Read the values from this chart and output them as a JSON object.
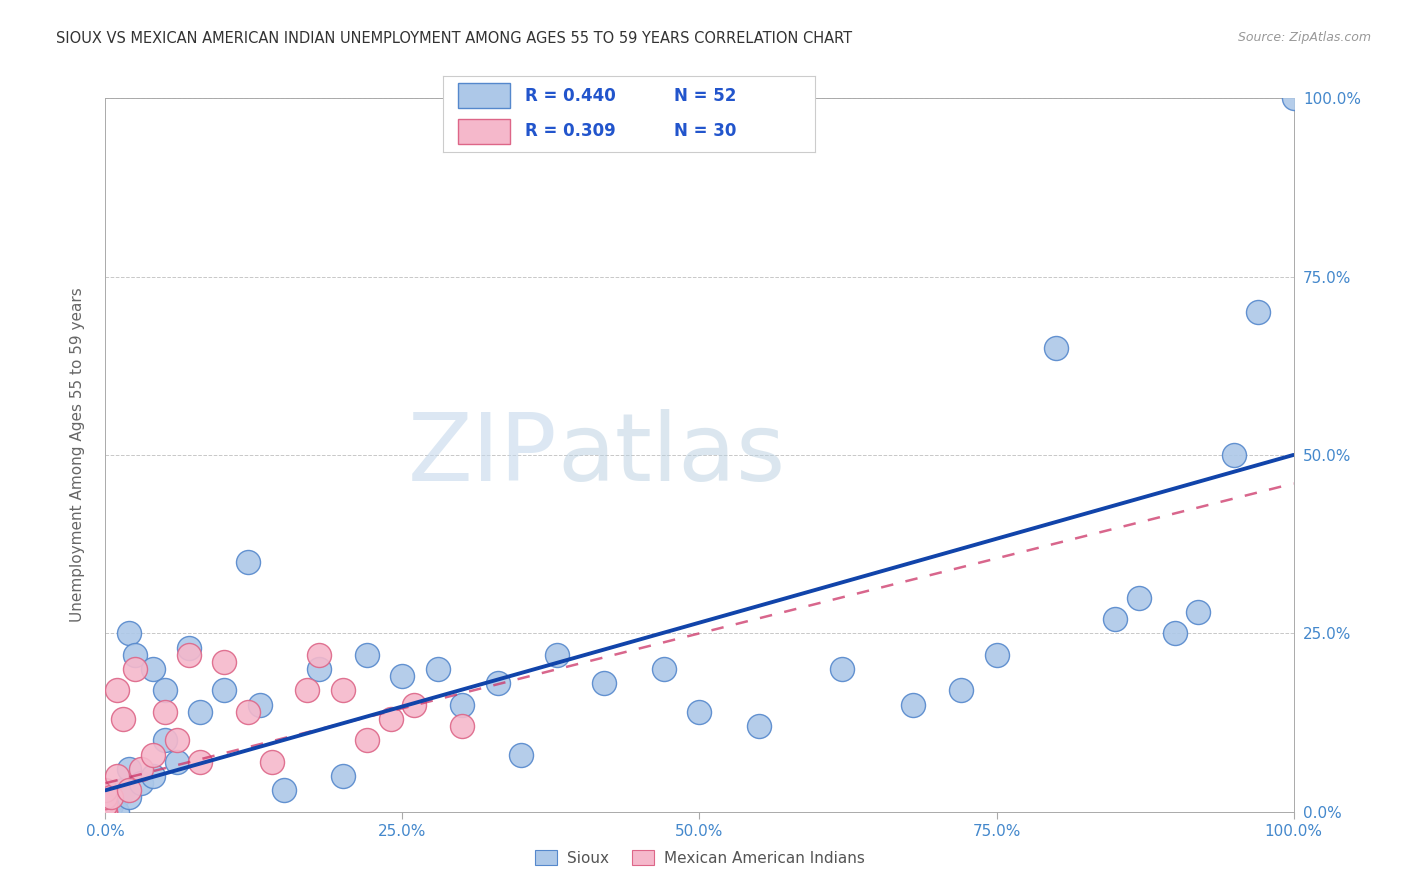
{
  "title": "SIOUX VS MEXICAN AMERICAN INDIAN UNEMPLOYMENT AMONG AGES 55 TO 59 YEARS CORRELATION CHART",
  "source": "Source: ZipAtlas.com",
  "ylabel": "Unemployment Among Ages 55 to 59 years",
  "xlim": [
    0,
    1.0
  ],
  "ylim": [
    0,
    1.0
  ],
  "xticks": [
    0.0,
    0.25,
    0.5,
    0.75,
    1.0
  ],
  "yticks": [
    0.0,
    0.25,
    0.5,
    0.75,
    1.0
  ],
  "xticklabels": [
    "0.0%",
    "25.0%",
    "50.0%",
    "75.0%",
    "100.0%"
  ],
  "right_yticklabels": [
    "0.0%",
    "25.0%",
    "50.0%",
    "75.0%",
    "100.0%"
  ],
  "sioux_color": "#adc8e8",
  "sioux_edge_color": "#5588cc",
  "sioux_line_color": "#1144aa",
  "mexican_color": "#f5b8cb",
  "mexican_edge_color": "#dd6688",
  "mexican_line_color": "#cc3366",
  "background_color": "#ffffff",
  "grid_color": "#cccccc",
  "tick_label_color": "#4488cc",
  "watermark_zip": "ZIP",
  "watermark_atlas": "atlas",
  "sioux_x": [
    0.0,
    0.0,
    0.0,
    0.0,
    0.0,
    0.0,
    0.0,
    0.005,
    0.01,
    0.01,
    0.015,
    0.02,
    0.02,
    0.02,
    0.025,
    0.03,
    0.04,
    0.04,
    0.05,
    0.05,
    0.06,
    0.07,
    0.08,
    0.1,
    0.12,
    0.13,
    0.15,
    0.18,
    0.2,
    0.22,
    0.25,
    0.28,
    0.3,
    0.33,
    0.35,
    0.38,
    0.42,
    0.47,
    0.5,
    0.55,
    0.62,
    0.68,
    0.72,
    0.75,
    0.8,
    0.85,
    0.87,
    0.9,
    0.92,
    0.95,
    0.97,
    1.0
  ],
  "sioux_y": [
    0.01,
    0.01,
    0.02,
    0.0,
    0.0,
    0.0,
    0.0,
    0.01,
    0.02,
    0.0,
    0.03,
    0.25,
    0.06,
    0.02,
    0.22,
    0.04,
    0.2,
    0.05,
    0.17,
    0.1,
    0.07,
    0.23,
    0.14,
    0.17,
    0.35,
    0.15,
    0.03,
    0.2,
    0.05,
    0.22,
    0.19,
    0.2,
    0.15,
    0.18,
    0.08,
    0.22,
    0.18,
    0.2,
    0.14,
    0.12,
    0.2,
    0.15,
    0.17,
    0.22,
    0.65,
    0.27,
    0.3,
    0.25,
    0.28,
    0.5,
    0.7,
    1.0
  ],
  "mexican_x": [
    0.0,
    0.0,
    0.0,
    0.0,
    0.0,
    0.0,
    0.0,
    0.0,
    0.005,
    0.01,
    0.01,
    0.015,
    0.02,
    0.025,
    0.03,
    0.04,
    0.05,
    0.06,
    0.07,
    0.08,
    0.1,
    0.12,
    0.14,
    0.17,
    0.18,
    0.2,
    0.22,
    0.24,
    0.26,
    0.3
  ],
  "mexican_y": [
    0.0,
    0.0,
    0.0,
    0.01,
    0.01,
    0.02,
    0.02,
    0.03,
    0.02,
    0.17,
    0.05,
    0.13,
    0.03,
    0.2,
    0.06,
    0.08,
    0.14,
    0.1,
    0.22,
    0.07,
    0.21,
    0.14,
    0.07,
    0.17,
    0.22,
    0.17,
    0.1,
    0.13,
    0.15,
    0.12
  ],
  "sioux_line_x": [
    0.0,
    1.0
  ],
  "sioux_line_y": [
    0.03,
    0.5
  ],
  "mexican_line_x": [
    0.0,
    0.3
  ],
  "mexican_line_y": [
    0.04,
    0.22
  ]
}
